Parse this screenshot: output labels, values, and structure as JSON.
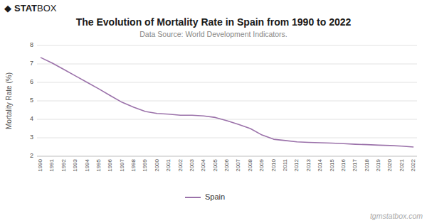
{
  "chart_data": {
    "type": "line",
    "title": "The Evolution of Mortality Rate in Spain from 1990 to 2022",
    "subtitle": "Data Source: World Development Indicators.",
    "y_label": "Mortality Rate (%)",
    "x": [
      1990,
      1991,
      1992,
      1993,
      1994,
      1995,
      1996,
      1997,
      1998,
      1999,
      2000,
      2001,
      2002,
      2003,
      2004,
      2005,
      2006,
      2007,
      2008,
      2009,
      2010,
      2011,
      2012,
      2013,
      2014,
      2015,
      2016,
      2017,
      2018,
      2019,
      2020,
      2021,
      2022
    ],
    "series": [
      {
        "name": "Spain",
        "color": "#9B72AA",
        "values": [
          7.35,
          7.05,
          6.7,
          6.35,
          6.0,
          5.65,
          5.28,
          4.92,
          4.65,
          4.42,
          4.32,
          4.28,
          4.22,
          4.22,
          4.18,
          4.1,
          3.92,
          3.72,
          3.5,
          3.15,
          2.92,
          2.85,
          2.78,
          2.75,
          2.73,
          2.71,
          2.68,
          2.65,
          2.63,
          2.6,
          2.58,
          2.55,
          2.5
        ]
      }
    ],
    "xlim": [
      1989.7,
      2022.3
    ],
    "xticks": [
      1990,
      1991,
      1992,
      1993,
      1994,
      1995,
      1996,
      1997,
      1998,
      1999,
      2000,
      2001,
      2002,
      2003,
      2004,
      2005,
      2006,
      2007,
      2008,
      2009,
      2010,
      2011,
      2012,
      2013,
      2014,
      2015,
      2016,
      2017,
      2018,
      2019,
      2020,
      2021,
      2022
    ],
    "ylim": [
      2,
      8
    ],
    "yticks": [
      2,
      3,
      4,
      5,
      6,
      7,
      8
    ],
    "grid": true,
    "legend": "bottom",
    "annotations": [
      "◆",
      "STAT",
      "BOX",
      "tgmstatbox.com"
    ]
  }
}
